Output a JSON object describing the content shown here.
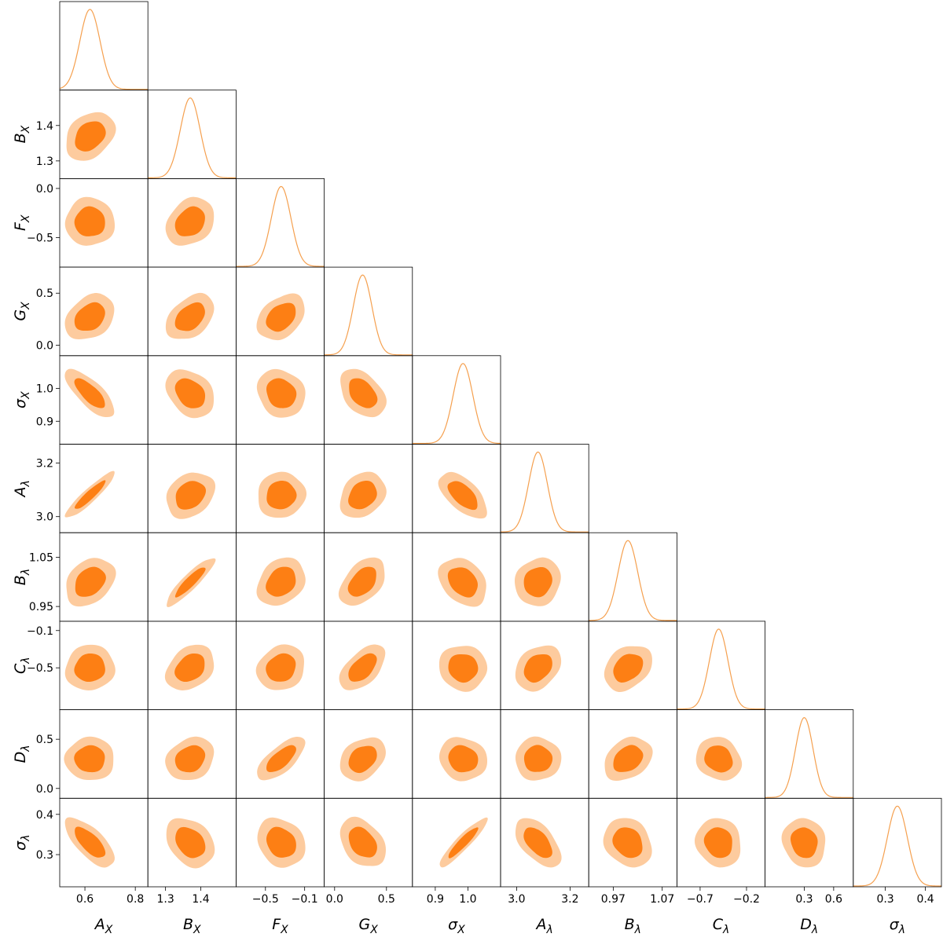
{
  "chart_data": {
    "type": "corner",
    "colors": {
      "contour_outer": "#fdcb9e",
      "contour_inner": "#fd7f14",
      "marginal_line": "#f5a04f"
    },
    "parameters": [
      {
        "symbol": "A",
        "sub": "X",
        "range": [
          0.5,
          0.85
        ],
        "mean": 0.62,
        "sd": 0.04,
        "ticks": [
          0.6,
          0.8
        ],
        "tick_labels": [
          "0.6",
          "0.8"
        ]
      },
      {
        "symbol": "B",
        "sub": "X",
        "range": [
          1.25,
          1.5
        ],
        "mean": 1.37,
        "sd": 0.028,
        "ticks": [
          1.3,
          1.4
        ],
        "tick_labels": [
          "1.3",
          "1.4"
        ]
      },
      {
        "symbol": "F",
        "sub": "X",
        "range": [
          -0.8,
          0.1
        ],
        "mean": -0.34,
        "sd": 0.1,
        "ticks": [
          -0.5,
          -0.1
        ],
        "tick_labels": [
          "−0.5",
          "−0.1"
        ]
      },
      {
        "symbol": "G",
        "sub": "X",
        "range": [
          -0.1,
          0.75
        ],
        "mean": 0.27,
        "sd": 0.09,
        "ticks": [
          0.0,
          0.5
        ],
        "tick_labels": [
          "0.0",
          "0.5"
        ]
      },
      {
        "symbol": "σ",
        "sub": "X",
        "range": [
          0.83,
          1.1
        ],
        "mean": 0.985,
        "sd": 0.03,
        "ticks": [
          0.9,
          1.0
        ],
        "tick_labels": [
          "0.9",
          "1.0"
        ]
      },
      {
        "symbol": "A",
        "sub": "λ",
        "range": [
          2.94,
          3.27
        ],
        "mean": 3.08,
        "sd": 0.035,
        "ticks": [
          3.0,
          3.2
        ],
        "tick_labels": [
          "3.0",
          "3.2"
        ]
      },
      {
        "symbol": "B",
        "sub": "λ",
        "range": [
          0.92,
          1.1
        ],
        "mean": 1.0,
        "sd": 0.02,
        "ticks": [
          0.97,
          1.07
        ],
        "tick_labels": [
          "0.97",
          "1.07"
        ]
      },
      {
        "symbol": "C",
        "sub": "λ",
        "range": [
          -0.95,
          0.0
        ],
        "mean": -0.5,
        "sd": 0.1,
        "ticks": [
          -0.7,
          -0.2
        ],
        "tick_labels": [
          "−0.7",
          "−0.2"
        ]
      },
      {
        "symbol": "D",
        "sub": "λ",
        "range": [
          -0.1,
          0.8
        ],
        "mean": 0.3,
        "sd": 0.09,
        "ticks": [
          0.3,
          0.6
        ],
        "tick_labels": [
          "0.3",
          "0.6"
        ]
      },
      {
        "symbol": "σ",
        "sub": "λ",
        "range": [
          0.22,
          0.44
        ],
        "mean": 0.33,
        "sd": 0.025,
        "ticks": [
          0.3,
          0.4
        ],
        "tick_labels": [
          "0.3",
          "0.4"
        ]
      }
    ],
    "y_axis_ticks": [
      null,
      {
        "ticks": [
          1.3,
          1.4
        ],
        "tick_labels": [
          "1.3",
          "1.4"
        ]
      },
      {
        "ticks": [
          -0.5,
          0.0
        ],
        "tick_labels": [
          "−0.5",
          "0.0"
        ]
      },
      {
        "ticks": [
          0.0,
          0.5
        ],
        "tick_labels": [
          "0.0",
          "0.5"
        ]
      },
      {
        "ticks": [
          0.9,
          1.0
        ],
        "tick_labels": [
          "0.9",
          "1.0"
        ]
      },
      {
        "ticks": [
          3.0,
          3.2
        ],
        "tick_labels": [
          "3.0",
          "3.2"
        ]
      },
      {
        "ticks": [
          0.95,
          1.05
        ],
        "tick_labels": [
          "0.95",
          "1.05"
        ]
      },
      {
        "ticks": [
          -0.5,
          -0.1
        ],
        "tick_labels": [
          "−0.5",
          "−0.1"
        ]
      },
      {
        "ticks": [
          0.0,
          0.5
        ],
        "tick_labels": [
          "0.0",
          "0.5"
        ]
      },
      {
        "ticks": [
          0.3,
          0.4
        ],
        "tick_labels": [
          "0.3",
          "0.4"
        ]
      }
    ],
    "correlations": [
      {
        "row": 1,
        "col": 0,
        "rho": 0.3
      },
      {
        "row": 2,
        "col": 0,
        "rho": 0.0
      },
      {
        "row": 2,
        "col": 1,
        "rho": 0.25
      },
      {
        "row": 3,
        "col": 0,
        "rho": 0.3
      },
      {
        "row": 3,
        "col": 1,
        "rho": 0.4
      },
      {
        "row": 3,
        "col": 2,
        "rho": 0.35
      },
      {
        "row": 4,
        "col": 0,
        "rho": -0.75
      },
      {
        "row": 4,
        "col": 1,
        "rho": -0.3
      },
      {
        "row": 4,
        "col": 2,
        "rho": -0.15
      },
      {
        "row": 4,
        "col": 3,
        "rho": -0.4
      },
      {
        "row": 5,
        "col": 0,
        "rho": 0.92
      },
      {
        "row": 5,
        "col": 1,
        "rho": 0.25
      },
      {
        "row": 5,
        "col": 2,
        "rho": 0.05
      },
      {
        "row": 5,
        "col": 3,
        "rho": 0.25
      },
      {
        "row": 5,
        "col": 4,
        "rho": -0.6
      },
      {
        "row": 6,
        "col": 0,
        "rho": 0.3
      },
      {
        "row": 6,
        "col": 1,
        "rho": 0.9
      },
      {
        "row": 6,
        "col": 2,
        "rho": 0.25
      },
      {
        "row": 6,
        "col": 3,
        "rho": 0.45
      },
      {
        "row": 6,
        "col": 4,
        "rho": -0.3
      },
      {
        "row": 6,
        "col": 5,
        "rho": 0.1
      },
      {
        "row": 7,
        "col": 0,
        "rho": 0.05
      },
      {
        "row": 7,
        "col": 1,
        "rho": 0.3
      },
      {
        "row": 7,
        "col": 2,
        "rho": 0.15
      },
      {
        "row": 7,
        "col": 3,
        "rho": 0.55
      },
      {
        "row": 7,
        "col": 4,
        "rho": -0.05
      },
      {
        "row": 7,
        "col": 5,
        "rho": 0.3
      },
      {
        "row": 7,
        "col": 6,
        "rho": 0.3
      },
      {
        "row": 8,
        "col": 0,
        "rho": 0.0
      },
      {
        "row": 8,
        "col": 1,
        "rho": 0.2
      },
      {
        "row": 8,
        "col": 2,
        "rho": 0.7
      },
      {
        "row": 8,
        "col": 3,
        "rho": 0.3
      },
      {
        "row": 8,
        "col": 4,
        "rho": -0.1
      },
      {
        "row": 8,
        "col": 5,
        "rho": 0.0
      },
      {
        "row": 8,
        "col": 6,
        "rho": 0.3
      },
      {
        "row": 8,
        "col": 7,
        "rho": -0.15
      },
      {
        "row": 9,
        "col": 0,
        "rho": -0.7
      },
      {
        "row": 9,
        "col": 1,
        "rho": -0.3
      },
      {
        "row": 9,
        "col": 2,
        "rho": -0.2
      },
      {
        "row": 9,
        "col": 3,
        "rho": -0.35
      },
      {
        "row": 9,
        "col": 4,
        "rho": 0.92
      },
      {
        "row": 9,
        "col": 5,
        "rho": -0.55
      },
      {
        "row": 9,
        "col": 6,
        "rho": -0.2
      },
      {
        "row": 9,
        "col": 7,
        "rho": -0.1
      },
      {
        "row": 9,
        "col": 8,
        "rho": -0.1
      }
    ]
  }
}
